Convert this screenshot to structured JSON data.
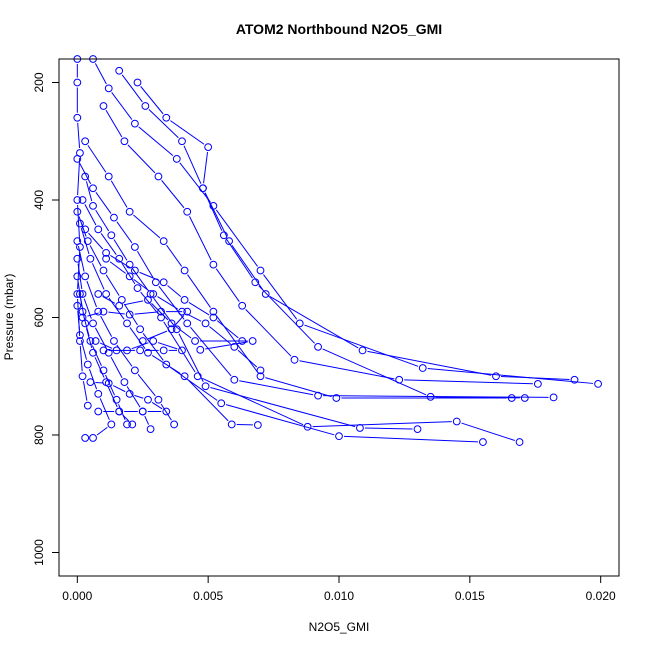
{
  "chart_data": {
    "type": "line",
    "title": "ATOM2 Northbound N2O5_GMI",
    "xlabel": "N2O5_GMI",
    "ylabel": "Pressure (mbar)",
    "xlim": [
      -0.0007,
      0.0207
    ],
    "ylim": [
      1040,
      160
    ],
    "y_reversed": true,
    "x_ticks": [
      0.0,
      0.005,
      0.01,
      0.015,
      0.02
    ],
    "x_tick_labels": [
      "0.000",
      "0.005",
      "0.010",
      "0.015",
      "0.020"
    ],
    "y_ticks": [
      200,
      400,
      600,
      800,
      1000
    ],
    "y_tick_labels": [
      "200",
      "400",
      "600",
      "800",
      "1000"
    ],
    "grid": false,
    "color": "#0000ff",
    "marker": "open-circle",
    "series": [
      {
        "points": [
          [
            0.0,
            160
          ],
          [
            0.0,
            200
          ],
          [
            0.0,
            260
          ],
          [
            0.0001,
            320
          ],
          [
            0.0,
            400
          ],
          [
            0.0001,
            480
          ],
          [
            0.0,
            560
          ],
          [
            0.0001,
            640
          ],
          [
            0.0002,
            700
          ],
          [
            0.0004,
            750
          ]
        ]
      },
      {
        "points": [
          [
            0.0006,
            160
          ],
          [
            0.0012,
            210
          ],
          [
            0.0022,
            270
          ],
          [
            0.0038,
            330
          ],
          [
            0.0052,
            410
          ],
          [
            0.007,
            520
          ],
          [
            0.0085,
            610
          ],
          [
            0.0132,
            686
          ],
          [
            0.0199,
            713
          ]
        ]
      },
      {
        "points": [
          [
            0.0016,
            180
          ],
          [
            0.0026,
            240
          ],
          [
            0.004,
            300
          ],
          [
            0.0048,
            380
          ],
          [
            0.0058,
            470
          ],
          [
            0.0072,
            560
          ],
          [
            0.0109,
            656
          ],
          [
            0.016,
            700
          ],
          [
            0.019,
            706
          ]
        ]
      },
      {
        "points": [
          [
            0.001,
            240
          ],
          [
            0.0018,
            300
          ],
          [
            0.0031,
            360
          ],
          [
            0.0042,
            420
          ],
          [
            0.0052,
            510
          ],
          [
            0.0063,
            580
          ],
          [
            0.0083,
            672
          ],
          [
            0.0123,
            706
          ],
          [
            0.0176,
            713
          ]
        ]
      },
      {
        "points": [
          [
            0.0023,
            200
          ],
          [
            0.0034,
            260
          ],
          [
            0.005,
            310
          ],
          [
            0.0048,
            380
          ],
          [
            0.0056,
            460
          ],
          [
            0.0068,
            540
          ],
          [
            0.0092,
            650
          ],
          [
            0.0135,
            735
          ],
          [
            0.0171,
            737
          ]
        ]
      },
      {
        "points": [
          [
            0.0003,
            300
          ],
          [
            0.0012,
            360
          ],
          [
            0.002,
            420
          ],
          [
            0.0033,
            470
          ],
          [
            0.0041,
            520
          ],
          [
            0.0052,
            590
          ],
          [
            0.007,
            700
          ],
          [
            0.0099,
            737
          ],
          [
            0.0166,
            737
          ]
        ]
      },
      {
        "points": [
          [
            0.0,
            330
          ],
          [
            0.0006,
            380
          ],
          [
            0.0014,
            430
          ],
          [
            0.0022,
            480
          ],
          [
            0.003,
            540
          ],
          [
            0.0042,
            610
          ],
          [
            0.006,
            706
          ],
          [
            0.0092,
            733
          ],
          [
            0.0182,
            736
          ]
        ]
      },
      {
        "points": [
          [
            0.0003,
            360
          ],
          [
            0.0006,
            410
          ],
          [
            0.0013,
            460
          ],
          [
            0.002,
            510
          ],
          [
            0.0028,
            560
          ],
          [
            0.0038,
            620
          ],
          [
            0.0049,
            717
          ],
          [
            0.0108,
            788
          ],
          [
            0.013,
            790
          ]
        ]
      },
      {
        "points": [
          [
            0.0002,
            400
          ],
          [
            0.0008,
            450
          ],
          [
            0.0016,
            500
          ],
          [
            0.0023,
            550
          ],
          [
            0.0032,
            600
          ],
          [
            0.0046,
            700
          ],
          [
            0.0088,
            786
          ],
          [
            0.0145,
            777
          ],
          [
            0.0169,
            812
          ]
        ]
      },
      {
        "points": [
          [
            0.0,
            420
          ],
          [
            0.0004,
            470
          ],
          [
            0.001,
            520
          ],
          [
            0.0017,
            570
          ],
          [
            0.0024,
            620
          ],
          [
            0.0034,
            680
          ],
          [
            0.0055,
            746
          ],
          [
            0.01,
            802
          ],
          [
            0.0155,
            812
          ]
        ]
      },
      {
        "points": [
          [
            0.0001,
            440
          ],
          [
            0.0005,
            500
          ],
          [
            0.0011,
            560
          ],
          [
            0.0019,
            610
          ],
          [
            0.0027,
            660
          ],
          [
            0.0041,
            700
          ],
          [
            0.0059,
            782
          ],
          [
            0.0069,
            783
          ]
        ]
      },
      {
        "points": [
          [
            0.0,
            470
          ],
          [
            0.0003,
            530
          ],
          [
            0.0008,
            590
          ],
          [
            0.0014,
            640
          ],
          [
            0.0022,
            690
          ],
          [
            0.0031,
            740
          ],
          [
            0.0037,
            782
          ]
        ]
      },
      {
        "points": [
          [
            0.0,
            500
          ],
          [
            0.0002,
            560
          ],
          [
            0.0006,
            610
          ],
          [
            0.0012,
            660
          ],
          [
            0.0018,
            710
          ],
          [
            0.0025,
            760
          ],
          [
            0.0028,
            790
          ]
        ]
      },
      {
        "points": [
          [
            0.0,
            530
          ],
          [
            0.0002,
            590
          ],
          [
            0.0005,
            640
          ],
          [
            0.001,
            690
          ],
          [
            0.0015,
            740
          ],
          [
            0.0019,
            782
          ]
        ]
      },
      {
        "points": [
          [
            0.0001,
            560
          ],
          [
            0.0003,
            610
          ],
          [
            0.0006,
            660
          ],
          [
            0.0011,
            710
          ],
          [
            0.0016,
            760
          ],
          [
            0.0021,
            782
          ]
        ]
      },
      {
        "points": [
          [
            0.0,
            580
          ],
          [
            0.0001,
            630
          ],
          [
            0.0004,
            680
          ],
          [
            0.0008,
            730
          ],
          [
            0.0013,
            782
          ],
          [
            0.0006,
            805
          ],
          [
            0.0003,
            805
          ]
        ]
      },
      {
        "points": [
          [
            0.0007,
            640
          ],
          [
            0.0015,
            656
          ],
          [
            0.0024,
            656
          ],
          [
            0.0033,
            656
          ],
          [
            0.004,
            656
          ],
          [
            0.0029,
            640
          ],
          [
            0.0019,
            656
          ],
          [
            0.001,
            656
          ]
        ]
      },
      {
        "points": [
          [
            0.0005,
            710
          ],
          [
            0.0012,
            712
          ],
          [
            0.002,
            730
          ],
          [
            0.0027,
            740
          ],
          [
            0.0034,
            760
          ],
          [
            0.0025,
            760
          ],
          [
            0.0016,
            760
          ],
          [
            0.0008,
            760
          ]
        ]
      },
      {
        "points": [
          [
            0.0002,
            600
          ],
          [
            0.001,
            590
          ],
          [
            0.002,
            595
          ],
          [
            0.0032,
            590
          ],
          [
            0.0042,
            590
          ],
          [
            0.0036,
            620
          ],
          [
            0.0025,
            640
          ]
        ]
      },
      {
        "points": [
          [
            0.0008,
            560
          ],
          [
            0.0016,
            580
          ],
          [
            0.0027,
            570
          ],
          [
            0.0036,
            610
          ],
          [
            0.0045,
            640
          ],
          [
            0.0067,
            640
          ],
          [
            0.0047,
            655
          ]
        ]
      },
      {
        "points": [
          [
            0.0011,
            500
          ],
          [
            0.002,
            530
          ],
          [
            0.0029,
            560
          ],
          [
            0.004,
            590
          ],
          [
            0.0049,
            610
          ],
          [
            0.006,
            650
          ],
          [
            0.007,
            690
          ]
        ]
      },
      {
        "points": [
          [
            0.0003,
            450
          ],
          [
            0.0011,
            490
          ],
          [
            0.0022,
            520
          ],
          [
            0.0033,
            540
          ],
          [
            0.0041,
            570
          ],
          [
            0.0052,
            600
          ],
          [
            0.0063,
            640
          ]
        ]
      }
    ]
  }
}
